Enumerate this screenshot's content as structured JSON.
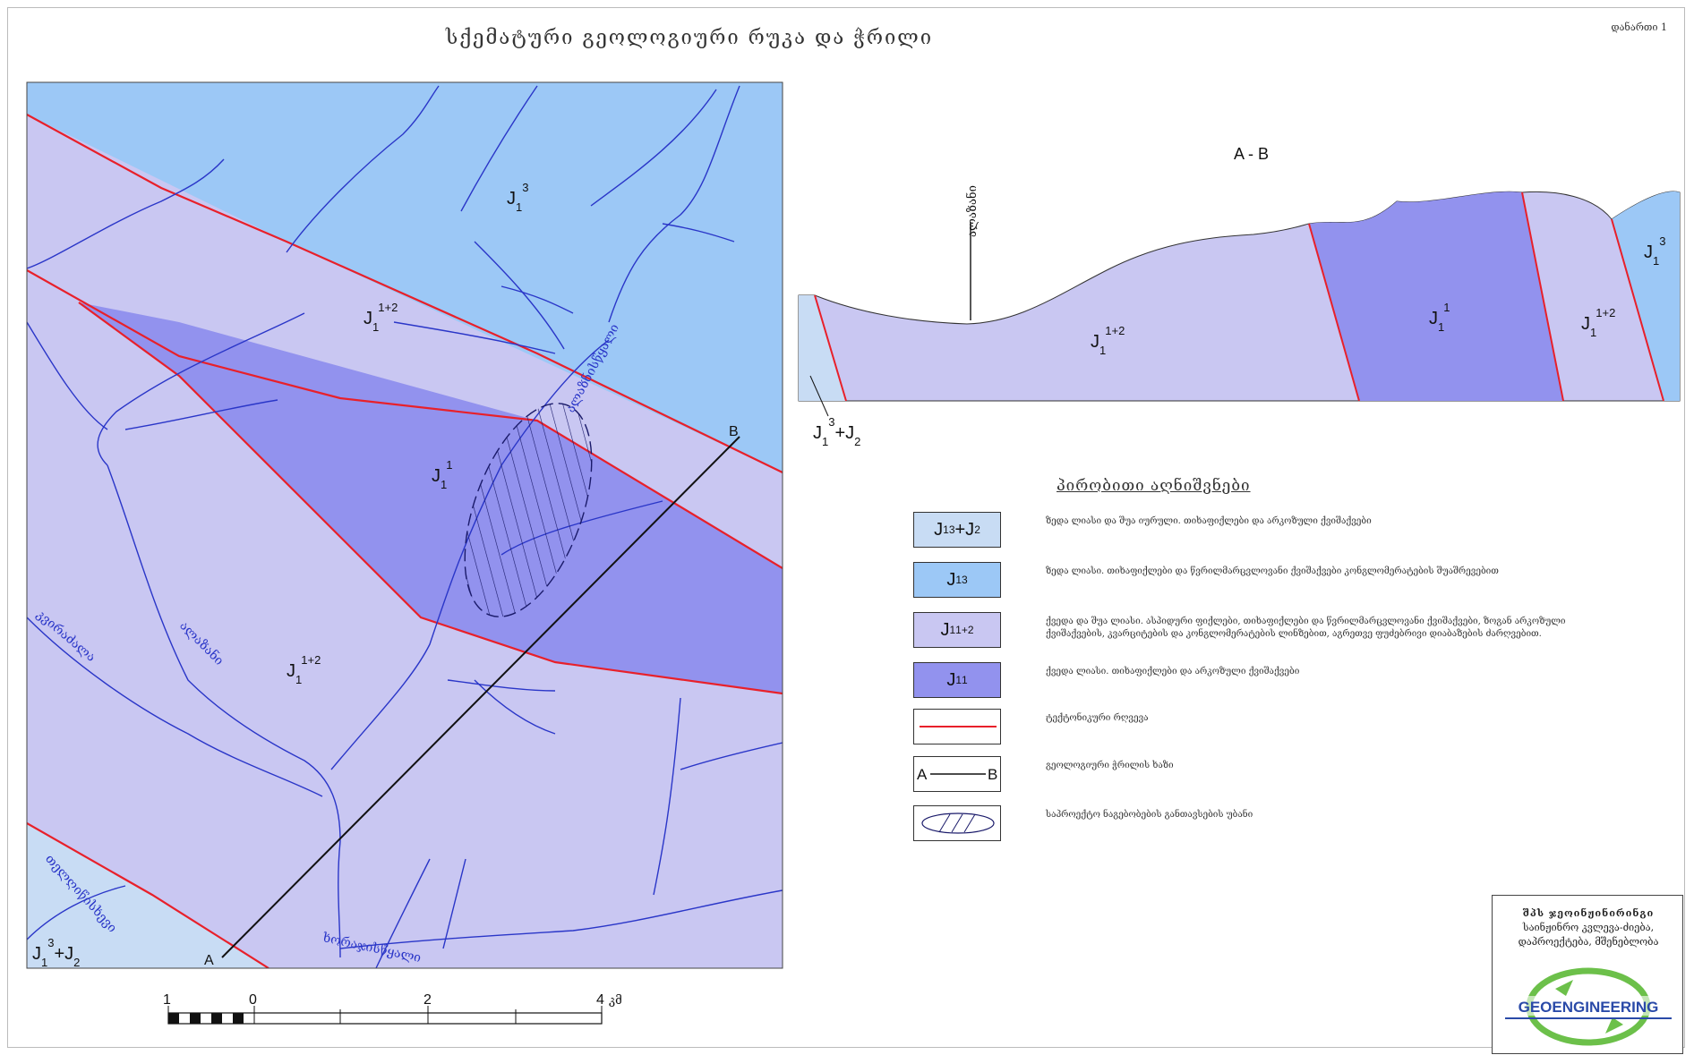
{
  "title": "სქემატური გეოლოგიური რუკა და ჭრილი",
  "annex": "დანართი 1",
  "map": {
    "unit_labels": {
      "J1_3_top": {
        "base": "J",
        "sub": "1",
        "sup": "3"
      },
      "J1_12_upper": {
        "base": "J",
        "sub": "1",
        "sup": "1+2"
      },
      "J1_1": {
        "base": "J",
        "sub": "1",
        "sup": "1"
      },
      "J1_12_lower": {
        "base": "J",
        "sub": "1",
        "sup": "1+2"
      },
      "J13J2_corner": "J13+J2"
    },
    "rivers": {
      "river_1": "ხორაჯისწყალი",
      "river_2": "ალაზანი",
      "river_3": "კვირაძალა",
      "river_4": "თელღიწისხევი",
      "river_5": "ალაზნისწყალი"
    },
    "profile_points": {
      "a": "A",
      "b": "B"
    },
    "scale": {
      "ticks": [
        "1",
        "0",
        "2",
        "4"
      ],
      "unit": "კმ"
    }
  },
  "section": {
    "title": "A - B",
    "river_label": "ალაზანი",
    "units": [
      "J1 1+2",
      "J1 1",
      "J1 1+2",
      "J1 3"
    ],
    "bottom_left": "J13+J2"
  },
  "legend": {
    "title": "პირობითი აღნიშვნები",
    "items": [
      {
        "sym": "J13+J2",
        "text": "ზედა ლიასი და შუა იურული. თიხაფიქლები და არკოზული ქვიშაქვები"
      },
      {
        "sym": "J13",
        "text": "ზედა ლიასი. თიხაფიქლები და წვრილმარცვლოვანი ქვიშაქვები კონგლომერატების შუაშრევებით"
      },
      {
        "sym": "J11+2",
        "text": "ქვედა და შუა ლიასი. ასპიდური ფიქლები, თიხაფიქლები და წვრილმარცვლოვანი ქვიშაქვები, ზოგან არკოზული ქვიშაქვების, კვარციტების და კონგლომერატების ლინზებით, აგრეთვე ფუძებრივი დიაბაზების ძარღვებით."
      },
      {
        "sym": "J11",
        "text": "ქვედა ლიასი. თიხაფიქლები და არკოზული ქვიშაქვები"
      },
      {
        "sym": "fault",
        "text": "ტექტონიკური რღვევა"
      },
      {
        "sym": "A B",
        "text": "გეოლოგიური ჭრილის ხაზი"
      },
      {
        "sym": "hatch",
        "text": "საპროექტო ნაგებობების განთავსების უბანი"
      }
    ]
  },
  "company": {
    "line1": "შპს ჯეოინჟინირინგი",
    "line2": "საინჟინრო კვლევა-ძიება,",
    "line3": "დაპროექტება, მშენებლობა",
    "logo_text": "GEOENGINEERING"
  },
  "colors": {
    "J13": "#9cc8f6",
    "J11_2": "#c9c7f2",
    "J11": "#9292ee",
    "J13_J2": "#c8dcf4",
    "fault": "#e8202a",
    "river": "#2a36c8",
    "logo_green": "#6cc04a",
    "logo_blue": "#2a4aa8"
  }
}
